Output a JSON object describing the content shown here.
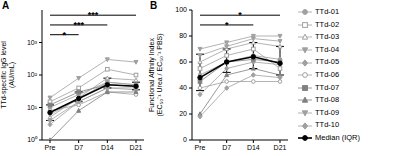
{
  "chart_data": [
    {
      "type": "line",
      "panel_label": "A",
      "y_label": [
        "TTd-specific IgG level",
        "(AU/mL)"
      ],
      "categories": [
        "Pre",
        "D7",
        "D14",
        "D21"
      ],
      "log": "y",
      "ylim": [
        1,
        10000
      ],
      "yticks": [
        {
          "value": 1,
          "label": "10⁰"
        },
        {
          "value": 10,
          "label": "10¹"
        },
        {
          "value": 100,
          "label": "10²"
        },
        {
          "value": 1000,
          "label": "10³"
        }
      ],
      "series": [
        {
          "name": "TTd-01",
          "color": "#a0a0a0",
          "marker": "circle",
          "values": [
            10,
            25,
            60,
            50
          ]
        },
        {
          "name": "TTd-02",
          "color": "#a0a0a0",
          "marker": "square-open",
          "values": [
            15,
            40,
            150,
            100
          ]
        },
        {
          "name": "TTd-03",
          "color": "#a0a0a0",
          "marker": "triangle-open",
          "values": [
            5,
            20,
            80,
            70
          ]
        },
        {
          "name": "TTd-04",
          "color": "#a0a0a0",
          "marker": "triangle-down",
          "values": [
            20,
            80,
            300,
            250
          ]
        },
        {
          "name": "TTd-05",
          "color": "#a0a0a0",
          "marker": "diamond",
          "values": [
            3,
            15,
            40,
            35
          ]
        },
        {
          "name": "TTd-06",
          "color": "#a0a0a0",
          "marker": "circle-open",
          "values": [
            8,
            12,
            30,
            25
          ]
        },
        {
          "name": "TTd-07",
          "color": "#808080",
          "marker": "square",
          "values": [
            12,
            30,
            50,
            45
          ]
        },
        {
          "name": "TTd-08",
          "color": "#808080",
          "marker": "triangle",
          "values": [
            1,
            8,
            30,
            30
          ]
        },
        {
          "name": "TTd-09",
          "color": "#a0a0a0",
          "marker": "triangle-down",
          "values": [
            6,
            18,
            60,
            50
          ]
        },
        {
          "name": "TTd-10",
          "color": "#a0a0a0",
          "marker": "diamond",
          "values": [
            4,
            15,
            40,
            40
          ]
        },
        {
          "name": "Median (IQR)",
          "color": "#000000",
          "marker": "circle",
          "values": [
            7,
            19,
            50,
            45
          ],
          "iqr": [
            [
              4,
              12
            ],
            [
              15,
              30
            ],
            [
              40,
              80
            ],
            [
              35,
              60
            ]
          ]
        }
      ],
      "significance": [
        {
          "from": "Pre",
          "to": "D21",
          "label": "***"
        },
        {
          "from": "Pre",
          "to": "D14",
          "label": "***"
        },
        {
          "from": "Pre",
          "to": "D7",
          "label": "*"
        }
      ]
    },
    {
      "type": "line",
      "panel_label": "B",
      "y_label": [
        "Functional Affinity Index",
        "(EC₅₀⁻¹ Urea / EC₅₀⁻¹ PBS)"
      ],
      "categories": [
        "Pre",
        "D7",
        "D14",
        "D21"
      ],
      "ylim": [
        0,
        100
      ],
      "yticks": [
        0,
        20,
        40,
        60,
        80,
        100
      ],
      "legend": "right",
      "series": [
        {
          "name": "TTd-01",
          "color": "#a0a0a0",
          "marker": "circle",
          "values": [
            50,
            60,
            65,
            62
          ]
        },
        {
          "name": "TTd-02",
          "color": "#a0a0a0",
          "marker": "square-open",
          "values": [
            55,
            65,
            70,
            55
          ]
        },
        {
          "name": "TTd-03",
          "color": "#a0a0a0",
          "marker": "triangle-open",
          "values": [
            60,
            70,
            75,
            72
          ]
        },
        {
          "name": "TTd-04",
          "color": "#a0a0a0",
          "marker": "triangle-down",
          "values": [
            70,
            75,
            80,
            80
          ]
        },
        {
          "name": "TTd-05",
          "color": "#a0a0a0",
          "marker": "diamond",
          "values": [
            35,
            55,
            60,
            58
          ]
        },
        {
          "name": "TTd-06",
          "color": "#a0a0a0",
          "marker": "circle-open",
          "values": [
            40,
            45,
            45,
            45
          ]
        },
        {
          "name": "TTd-07",
          "color": "#808080",
          "marker": "square",
          "values": [
            45,
            60,
            62,
            60
          ]
        },
        {
          "name": "TTd-08",
          "color": "#808080",
          "marker": "triangle",
          "values": [
            20,
            50,
            55,
            50
          ]
        },
        {
          "name": "TTd-09",
          "color": "#a0a0a0",
          "marker": "triangle-down",
          "values": [
            65,
            72,
            78,
            76
          ]
        },
        {
          "name": "TTd-10",
          "color": "#a0a0a0",
          "marker": "diamond",
          "values": [
            18,
            40,
            50,
            48
          ]
        },
        {
          "name": "Median (IQR)",
          "color": "#000000",
          "marker": "circle",
          "values": [
            48,
            60,
            64,
            59
          ],
          "iqr": [
            [
              38,
              66
            ],
            [
              52,
              70
            ],
            [
              55,
              75
            ],
            [
              50,
              72
            ]
          ]
        }
      ],
      "significance": [
        {
          "from": "Pre",
          "to": "D21",
          "label": "*"
        },
        {
          "from": "Pre",
          "to": "D14",
          "label": "*"
        }
      ]
    }
  ]
}
